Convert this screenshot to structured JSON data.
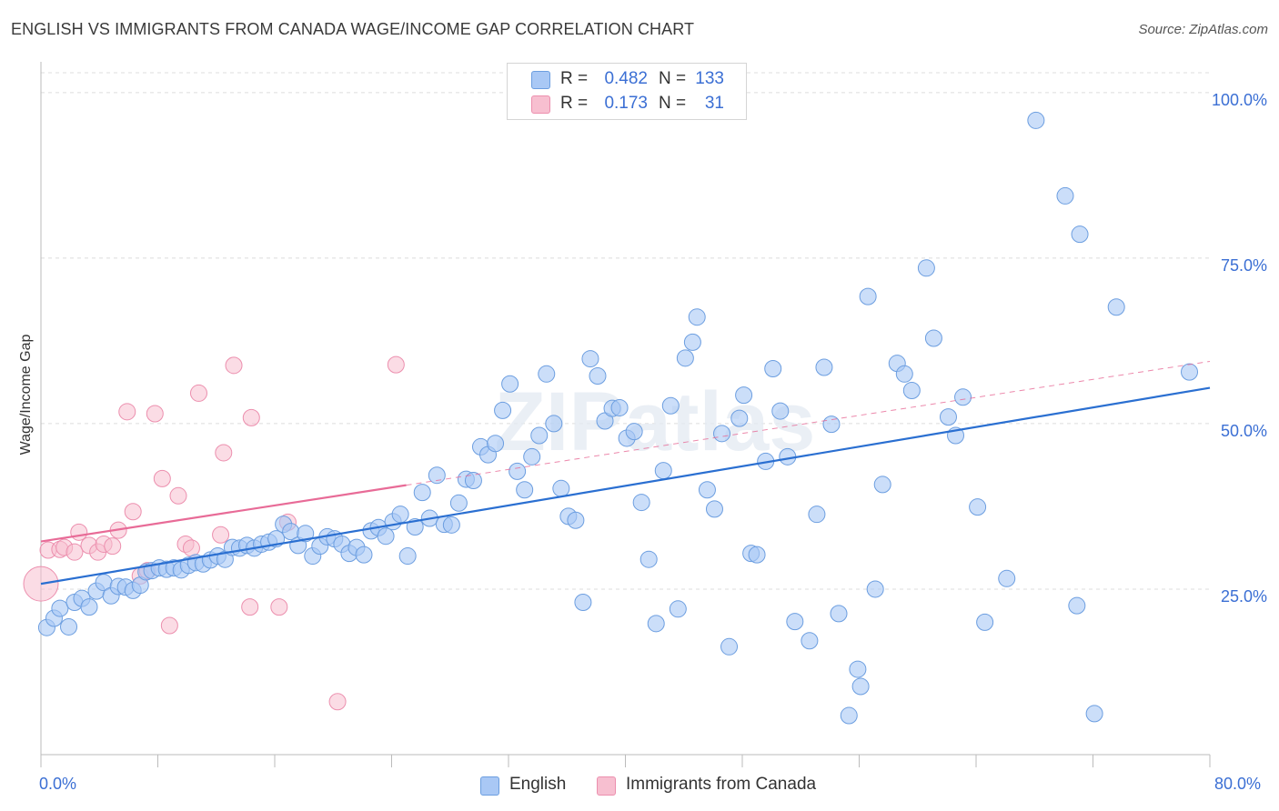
{
  "title": "ENGLISH VS IMMIGRANTS FROM CANADA WAGE/INCOME GAP CORRELATION CHART",
  "source": "Source: ZipAtlas.com",
  "watermark": "ZIPatlas",
  "colors": {
    "english_fill": "#a9c8f5",
    "english_stroke": "#6c9ee0",
    "english_line": "#2a6fd1",
    "canada_fill": "#f7bfd0",
    "canada_stroke": "#ec8fae",
    "canada_line": "#e86b97",
    "tick_label": "#3b6fd4",
    "grid": "#dcdcdc"
  },
  "legend_top": {
    "rows": [
      {
        "r_label": "R =",
        "r_value": "0.482",
        "n_label": "N =",
        "n_value": "133"
      },
      {
        "r_label": "R =",
        "r_value": "0.173",
        "n_label": "N =",
        "n_value": "31"
      }
    ]
  },
  "legend_bottom": {
    "items": [
      {
        "label": "English"
      },
      {
        "label": "Immigrants from Canada"
      }
    ]
  },
  "chart_data": {
    "type": "scatter",
    "title": "ENGLISH VS IMMIGRANTS FROM CANADA WAGE/INCOME GAP CORRELATION CHART",
    "xlabel": "",
    "ylabel": "Wage/Income Gap",
    "xlim": [
      0,
      80
    ],
    "ylim": [
      0,
      103
    ],
    "x_tick_labels": [
      "0.0%",
      "80.0%"
    ],
    "y_ticks": [
      25,
      50,
      75,
      100
    ],
    "y_tick_labels": [
      "25.0%",
      "50.0%",
      "75.0%",
      "100.0%"
    ],
    "grid": "horizontal dashed",
    "legend": "top-center",
    "series": [
      {
        "name": "English",
        "R": 0.482,
        "N": 133,
        "trend": {
          "x0": 0,
          "y0": 25.8,
          "x1": 80,
          "y1": 55.4
        },
        "points": [
          [
            0.4,
            19.2
          ],
          [
            0.9,
            20.6
          ],
          [
            1.3,
            22.1
          ],
          [
            1.9,
            19.3
          ],
          [
            2.3,
            23.0
          ],
          [
            2.8,
            23.6
          ],
          [
            3.3,
            22.3
          ],
          [
            3.8,
            24.7
          ],
          [
            4.3,
            26.0
          ],
          [
            4.8,
            24.0
          ],
          [
            5.3,
            25.4
          ],
          [
            5.8,
            25.3
          ],
          [
            6.3,
            24.8
          ],
          [
            6.8,
            25.6
          ],
          [
            7.2,
            27.6
          ],
          [
            7.6,
            27.8
          ],
          [
            8.1,
            28.2
          ],
          [
            8.6,
            28.0
          ],
          [
            9.1,
            28.2
          ],
          [
            9.6,
            27.9
          ],
          [
            10.1,
            28.6
          ],
          [
            10.6,
            29.0
          ],
          [
            11.1,
            28.8
          ],
          [
            11.6,
            29.4
          ],
          [
            12.1,
            30.0
          ],
          [
            12.6,
            29.5
          ],
          [
            13.1,
            31.3
          ],
          [
            13.6,
            31.2
          ],
          [
            14.1,
            31.6
          ],
          [
            14.6,
            31.2
          ],
          [
            15.1,
            31.8
          ],
          [
            15.6,
            32.1
          ],
          [
            16.1,
            32.6
          ],
          [
            16.6,
            34.8
          ],
          [
            17.1,
            33.7
          ],
          [
            17.6,
            31.6
          ],
          [
            18.1,
            33.4
          ],
          [
            18.6,
            30.0
          ],
          [
            19.1,
            31.5
          ],
          [
            19.6,
            32.9
          ],
          [
            20.1,
            32.6
          ],
          [
            20.6,
            31.8
          ],
          [
            21.1,
            30.4
          ],
          [
            21.6,
            31.3
          ],
          [
            22.1,
            30.2
          ],
          [
            22.6,
            33.8
          ],
          [
            23.1,
            34.3
          ],
          [
            23.6,
            33.0
          ],
          [
            24.1,
            35.2
          ],
          [
            24.6,
            36.3
          ],
          [
            25.6,
            34.4
          ],
          [
            25.1,
            30.0
          ],
          [
            26.1,
            39.6
          ],
          [
            27.1,
            42.2
          ],
          [
            26.6,
            35.7
          ],
          [
            27.6,
            34.8
          ],
          [
            28.1,
            34.7
          ],
          [
            28.6,
            38.0
          ],
          [
            29.1,
            41.6
          ],
          [
            29.6,
            41.4
          ],
          [
            30.1,
            46.5
          ],
          [
            30.6,
            45.3
          ],
          [
            31.1,
            47.0
          ],
          [
            31.6,
            52.0
          ],
          [
            32.1,
            56.0
          ],
          [
            32.6,
            42.8
          ],
          [
            33.1,
            40.0
          ],
          [
            33.6,
            45.0
          ],
          [
            34.1,
            48.2
          ],
          [
            34.6,
            57.5
          ],
          [
            35.1,
            50.0
          ],
          [
            35.6,
            40.2
          ],
          [
            36.1,
            36.0
          ],
          [
            36.6,
            35.4
          ],
          [
            37.1,
            23.0
          ],
          [
            37.6,
            59.8
          ],
          [
            38.1,
            57.2
          ],
          [
            38.6,
            50.4
          ],
          [
            39.1,
            52.3
          ],
          [
            39.6,
            52.4
          ],
          [
            40.1,
            47.8
          ],
          [
            40.6,
            48.8
          ],
          [
            41.1,
            38.1
          ],
          [
            41.6,
            29.5
          ],
          [
            42.1,
            19.8
          ],
          [
            42.6,
            42.9
          ],
          [
            43.1,
            52.7
          ],
          [
            43.6,
            22.0
          ],
          [
            44.1,
            59.9
          ],
          [
            44.6,
            62.3
          ],
          [
            44.9,
            66.1
          ],
          [
            45.6,
            40.0
          ],
          [
            46.1,
            37.1
          ],
          [
            46.6,
            48.5
          ],
          [
            47.1,
            16.3
          ],
          [
            47.8,
            50.8
          ],
          [
            48.1,
            54.3
          ],
          [
            48.6,
            30.4
          ],
          [
            49.0,
            30.2
          ],
          [
            49.6,
            44.3
          ],
          [
            50.1,
            58.3
          ],
          [
            50.6,
            51.9
          ],
          [
            51.1,
            45.0
          ],
          [
            51.6,
            20.1
          ],
          [
            52.6,
            17.2
          ],
          [
            53.1,
            36.3
          ],
          [
            53.6,
            58.5
          ],
          [
            54.1,
            49.9
          ],
          [
            54.6,
            21.3
          ],
          [
            55.3,
            5.9
          ],
          [
            55.9,
            12.9
          ],
          [
            56.1,
            10.3
          ],
          [
            56.6,
            69.2
          ],
          [
            57.1,
            25.0
          ],
          [
            57.6,
            40.8
          ],
          [
            58.6,
            59.1
          ],
          [
            59.1,
            57.5
          ],
          [
            59.6,
            55.0
          ],
          [
            60.6,
            73.5
          ],
          [
            61.1,
            62.9
          ],
          [
            62.1,
            51.0
          ],
          [
            62.6,
            48.2
          ],
          [
            63.1,
            54.0
          ],
          [
            64.1,
            37.4
          ],
          [
            64.6,
            20.0
          ],
          [
            66.1,
            26.6
          ],
          [
            68.1,
            95.8
          ],
          [
            70.1,
            84.4
          ],
          [
            70.9,
            22.5
          ],
          [
            71.1,
            78.6
          ],
          [
            72.1,
            6.2
          ],
          [
            73.6,
            67.6
          ],
          [
            78.6,
            57.8
          ]
        ]
      },
      {
        "name": "Immigrants from Canada",
        "R": 0.173,
        "N": 31,
        "trend": {
          "x0": 0,
          "y0": 32.2,
          "x1": 25,
          "y1": 40.7
        },
        "trend_extension": {
          "x0": 25,
          "y0": 40.7,
          "x1": 80,
          "y1": 59.4
        },
        "points": [
          [
            0.0,
            25.8
          ],
          [
            0.5,
            30.9
          ],
          [
            1.3,
            31.0
          ],
          [
            1.6,
            31.3
          ],
          [
            2.3,
            30.6
          ],
          [
            2.6,
            33.6
          ],
          [
            3.3,
            31.6
          ],
          [
            3.9,
            30.6
          ],
          [
            4.3,
            31.8
          ],
          [
            4.9,
            31.5
          ],
          [
            5.3,
            33.9
          ],
          [
            5.9,
            51.8
          ],
          [
            6.3,
            36.7
          ],
          [
            6.8,
            27.0
          ],
          [
            7.3,
            27.8
          ],
          [
            7.8,
            51.5
          ],
          [
            8.3,
            41.7
          ],
          [
            8.8,
            19.5
          ],
          [
            9.4,
            39.1
          ],
          [
            9.9,
            31.8
          ],
          [
            10.3,
            31.2
          ],
          [
            10.8,
            54.6
          ],
          [
            12.3,
            33.2
          ],
          [
            12.5,
            45.6
          ],
          [
            13.2,
            58.8
          ],
          [
            14.3,
            22.3
          ],
          [
            14.4,
            50.9
          ],
          [
            16.3,
            22.3
          ],
          [
            16.9,
            35.1
          ],
          [
            20.3,
            8.0
          ],
          [
            24.3,
            58.9
          ]
        ]
      }
    ]
  }
}
